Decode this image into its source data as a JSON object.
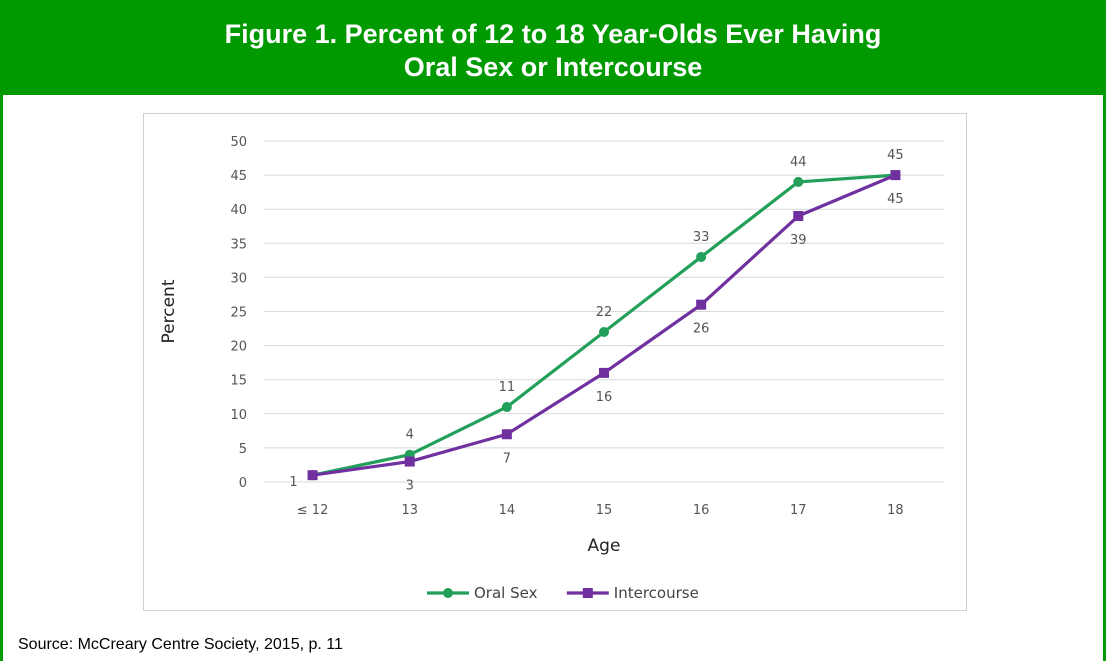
{
  "header": {
    "title_line1": "Figure 1.  Percent of 12 to 18 Year-Olds Ever Having",
    "title_line2": "Oral Sex or Intercourse"
  },
  "source": "Source: McCreary Centre Society, 2015, p. 11",
  "colors": {
    "brand_green": "#009900",
    "oral_sex": "#22A05A",
    "intercourse": "#7030A0"
  },
  "chart_data": {
    "type": "line",
    "categories": [
      "≤ 12",
      "13",
      "14",
      "15",
      "16",
      "17",
      "18"
    ],
    "series": [
      {
        "name": "Oral Sex",
        "values": [
          1,
          4,
          11,
          22,
          33,
          44,
          45
        ],
        "marker": "circle",
        "color": "#22A05A"
      },
      {
        "name": "Intercourse",
        "values": [
          1,
          3,
          7,
          16,
          26,
          39,
          45
        ],
        "marker": "square",
        "color": "#7030A0"
      }
    ],
    "xlabel": "Age",
    "ylabel": "Percent",
    "ylim": [
      0,
      50
    ],
    "yticks": [
      0,
      5,
      10,
      15,
      20,
      25,
      30,
      35,
      40,
      45,
      50
    ],
    "grid": true,
    "legend": "bottom"
  }
}
